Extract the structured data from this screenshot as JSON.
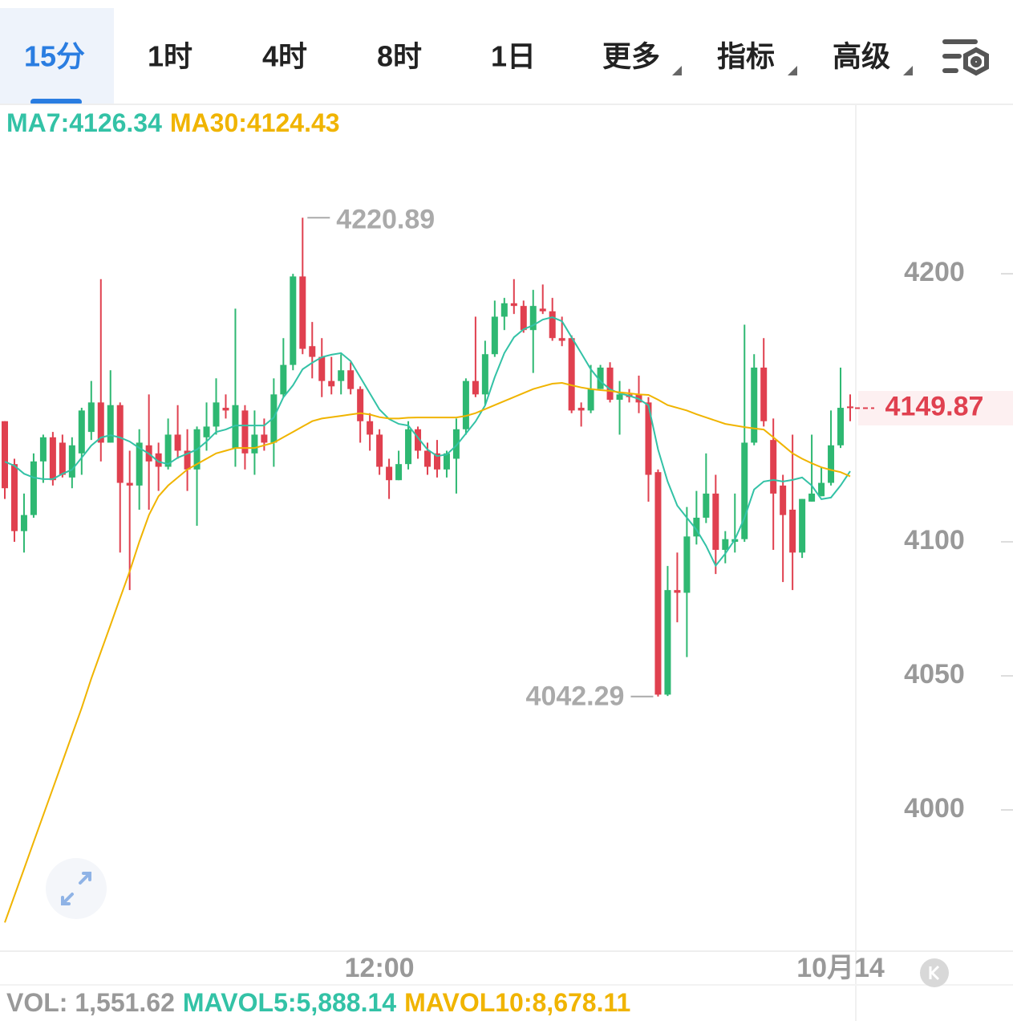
{
  "tabs": [
    "15分",
    "1时",
    "4时",
    "8时",
    "1日",
    "更多",
    "指标",
    "高级"
  ],
  "chart_data": {
    "type": "candlestick",
    "categories": [
      null,
      null,
      null,
      null,
      null,
      null,
      null,
      null,
      null,
      null,
      null,
      null,
      null,
      null,
      null,
      null,
      null,
      null,
      null,
      null,
      null,
      null,
      null,
      null,
      null,
      null,
      null,
      null,
      null,
      null,
      null,
      null,
      null,
      null,
      null,
      null,
      null,
      null,
      null,
      "12:00",
      null,
      null,
      null,
      null,
      null,
      null,
      null,
      null,
      null,
      null,
      null,
      null,
      null,
      null,
      null,
      null,
      null,
      null,
      null,
      null,
      null,
      null,
      null,
      null,
      null,
      null,
      null,
      null,
      null,
      null,
      null,
      null,
      null,
      null,
      null,
      null,
      null,
      null,
      null,
      null,
      null,
      null,
      null,
      null,
      null,
      null,
      null,
      "10月14",
      null
    ],
    "open": [
      4145,
      4129,
      4104,
      4110,
      4130,
      4139,
      4137,
      4124,
      4133,
      4141,
      4152,
      4137,
      4151,
      4122,
      4121,
      4136,
      4133,
      4128,
      4140,
      4134,
      4127,
      4139,
      4143,
      4150,
      4135,
      4149,
      4133,
      4140,
      4137,
      4155,
      4166,
      4199,
      4173,
      4169,
      4160,
      4160,
      4164,
      4157,
      4145,
      4140,
      4128,
      4123,
      4129,
      4142,
      4134,
      4133,
      4127,
      4131,
      4142,
      4160,
      4155,
      4170,
      4184,
      4189,
      4188,
      4179,
      4187,
      4186,
      4176,
      4176,
      4150,
      4149,
      4157,
      4165,
      4153,
      4155,
      4155,
      4152,
      4126,
      4043,
      4082,
      4081,
      4102,
      4109,
      4118,
      4097,
      4100,
      4101,
      4137,
      4165,
      4138,
      4121,
      4112,
      4096,
      4115,
      4117,
      4122,
      4136,
      4150.5
    ],
    "high": [
      4145,
      4131,
      4118,
      4133,
      4140,
      4141,
      4140,
      4139,
      4150,
      4160,
      4198,
      4164,
      4152,
      4134,
      4142,
      4155,
      4137,
      4146,
      4151,
      4142,
      4143,
      4152,
      4161,
      4155,
      4187,
      4151,
      4149,
      4146,
      4161,
      4176,
      4200,
      4220.89,
      4182,
      4176,
      4169,
      4170,
      4167,
      4158,
      4148,
      4142,
      4131,
      4134,
      4145,
      4143,
      4137,
      4138,
      4134,
      4146,
      4161,
      4184,
      4175,
      4190,
      4191,
      4198,
      4190,
      4194,
      4196,
      4191,
      4184,
      4177,
      4152,
      4166,
      4166,
      4167,
      4160,
      4157,
      4162,
      4154,
      4127,
      4091,
      4096,
      4113,
      4119,
      4133,
      4125,
      4104,
      4118,
      4181,
      4170,
      4176,
      4146,
      4125,
      4140,
      4116,
      4140,
      4128,
      4149,
      4165,
      4155
    ],
    "low": [
      4116,
      4100,
      4096,
      4109,
      4122,
      4121,
      4124,
      4120,
      4125,
      4138,
      4130,
      4137,
      4096,
      4082,
      4112,
      4112,
      4119,
      4127,
      4131,
      4119,
      4106,
      4134,
      4140,
      4146,
      4128,
      4127,
      4125,
      4134,
      4128,
      4154,
      4164,
      4170,
      4161,
      4154,
      4155,
      4155,
      4155,
      4137,
      4134,
      4125,
      4116,
      4123,
      4127,
      4131,
      4125,
      4124,
      4124,
      4118,
      4140,
      4154,
      4151,
      4169,
      4179,
      4185,
      4178,
      4163,
      4185,
      4175,
      4173,
      4148,
      4143,
      4148,
      4157,
      4152,
      4140,
      4152,
      4148,
      4115,
      4042.29,
      4042.5,
      4070,
      4057,
      4099,
      4107,
      4088,
      4092,
      4096,
      4100,
      4136,
      4143,
      4097,
      4085,
      4082,
      4094,
      4115,
      4117,
      4121,
      4135,
      4145
    ],
    "close": [
      4120,
      4104,
      4110,
      4130,
      4139,
      4123,
      4125,
      4136,
      4149,
      4152,
      4137,
      4151,
      4122,
      4121,
      4137,
      4130,
      4128,
      4140,
      4134,
      4127,
      4142,
      4143,
      4152,
      4149,
      4151,
      4133,
      4140,
      4137,
      4155,
      4166,
      4199,
      4172,
      4169,
      4160,
      4158,
      4164,
      4157,
      4145,
      4140,
      4128,
      4123,
      4129,
      4142,
      4134,
      4128,
      4127,
      4133,
      4142,
      4160,
      4155,
      4170,
      4184,
      4189,
      4188,
      4179,
      4188,
      4186,
      4176,
      4175,
      4149,
      4149,
      4157,
      4165,
      4153,
      4155,
      4154,
      4152,
      4125,
      4043,
      4082,
      4081,
      4102,
      4109,
      4118,
      4097,
      4101,
      4101,
      4137,
      4165,
      4145,
      4118,
      4110,
      4096,
      4116,
      4118,
      4122,
      4136,
      4150,
      4149.87
    ],
    "up_color": "#2eb872",
    "down_color": "#e0404f",
    "series": [
      {
        "label": "MA7:4126.34",
        "color": "#33c2a6",
        "values": [
          4129.9,
          4128.4,
          4125.4,
          4124.0,
          4123.4,
          4123.4,
          4125.4,
          4126.9,
          4131.4,
          4135.9,
          4138.9,
          4139.8,
          4138.9,
          4137.4,
          4135.0,
          4132.9,
          4129.9,
          4129.0,
          4131.4,
          4132.9,
          4134.4,
          4137.4,
          4141.0,
          4141.9,
          4143.4,
          4143.4,
          4143.4,
          4143.4,
          4146.4,
          4153.9,
          4158.4,
          4164.4,
          4166.8,
          4168.9,
          4169.8,
          4170.4,
          4167.4,
          4161.4,
          4155.4,
          4149.4,
          4145.8,
          4144.0,
          4143.4,
          4138.9,
          4134.4,
          4132.0,
          4132.6,
          4135.9,
          4140.4,
          4144.9,
          4150.9,
          4161.4,
          4170.4,
          4176.3,
          4179.3,
          4180.8,
          4182.9,
          4183.8,
          4182.3,
          4176.3,
          4170.4,
          4164.4,
          4159.9,
          4156.9,
          4155.4,
          4154.5,
          4153.3,
          4150.9,
          4134.4,
          4122.5,
          4113.5,
          4109.0,
          4104.5,
          4098.5,
          4091.1,
          4095.6,
          4100.9,
          4109.0,
          4119.5,
          4122.5,
          4123.1,
          4122.5,
          4123.1,
          4124.0,
          4121.0,
          4115.9,
          4116.5,
          4121.0,
          4126.34
        ]
      },
      {
        "label": "MA30:4124.43",
        "color": "#f0b400",
        "values": [
          3958,
          3968,
          3978,
          3988,
          3998,
          4008,
          4018,
          4028,
          4038,
          4049,
          4059,
          4069,
          4079,
          4089,
          4100,
          4110,
          4117,
          4121,
          4124,
          4127,
          4129,
          4131,
          4133,
          4134,
          4135,
          4135,
          4135,
          4136,
          4137,
          4139,
          4141,
          4143,
          4145,
          4146,
          4146.5,
          4147,
          4147.5,
          4148,
          4147.5,
          4146.5,
          4146,
          4146,
          4146.3,
          4146.4,
          4146.4,
          4146.4,
          4146.4,
          4146.4,
          4147,
          4148,
          4149.5,
          4151,
          4152.5,
          4154,
          4155.5,
          4157,
          4158,
          4159,
          4159.3,
          4158.4,
          4157.6,
          4157,
          4156.6,
          4156.3,
          4155.8,
          4155.4,
          4155,
          4154.8,
          4153,
          4151,
          4150,
          4149,
          4147.6,
          4146.4,
          4145.2,
          4144,
          4143.4,
          4142.8,
          4142.3,
          4141.9,
          4139,
          4136,
          4133,
          4131,
          4129.3,
          4127.8,
          4126.8,
          4126,
          4124.43
        ]
      }
    ],
    "ylim": [
      3947.3,
      4263.2
    ],
    "yticks": [
      4000,
      4050,
      4100,
      4200
    ],
    "volume_legend": [
      "VOL: 1,551.62",
      "MAVOL5:5,888.14",
      "MAVOL10:8,678.11"
    ]
  }
}
